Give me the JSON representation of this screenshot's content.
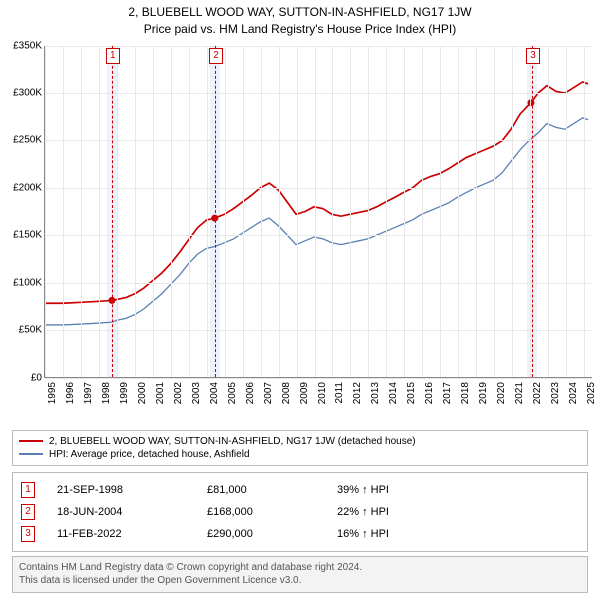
{
  "title": {
    "line1": "2, BLUEBELL WOOD WAY, SUTTON-IN-ASHFIELD, NG17 1JW",
    "line2": "Price paid vs. HM Land Registry's House Price Index (HPI)"
  },
  "chart": {
    "type": "line",
    "background_color": "#ffffff",
    "grid_color": "#e8e8e8",
    "axis_color": "#888888",
    "tick_fontsize": 10,
    "xlim_year": [
      1995,
      2025.5
    ],
    "ylim": [
      0,
      350000
    ],
    "ytick_step": 50000,
    "ytick_labels": [
      "£0",
      "£50K",
      "£100K",
      "£150K",
      "£200K",
      "£250K",
      "£300K",
      "£350K"
    ],
    "x_years": [
      1995,
      1996,
      1997,
      1998,
      1999,
      2000,
      2001,
      2002,
      2003,
      2004,
      2005,
      2006,
      2007,
      2008,
      2009,
      2010,
      2011,
      2012,
      2013,
      2014,
      2015,
      2016,
      2017,
      2018,
      2019,
      2020,
      2021,
      2022,
      2023,
      2024,
      2025
    ],
    "marker_band_color": "#eef3fb",
    "markers": [
      {
        "id": "1",
        "year": 1998.72,
        "color": "#cc0000"
      },
      {
        "id": "2",
        "year": 2004.46,
        "color": "#cc0000"
      },
      {
        "id": "3",
        "year": 2022.11,
        "color": "#cc0000"
      }
    ],
    "series": [
      {
        "name": "property",
        "label": "2, BLUEBELL WOOD WAY, SUTTON-IN-ASHFIELD, NG17 1JW (detached house)",
        "color": "#cc0000",
        "line_width": 1.7,
        "points_year_value": [
          [
            1995,
            78000
          ],
          [
            1996,
            78000
          ],
          [
            1997,
            79000
          ],
          [
            1998,
            80000
          ],
          [
            1998.72,
            81000
          ],
          [
            1999,
            82000
          ],
          [
            1999.5,
            84000
          ],
          [
            2000,
            88000
          ],
          [
            2000.5,
            94000
          ],
          [
            2001,
            102000
          ],
          [
            2001.5,
            110000
          ],
          [
            2002,
            120000
          ],
          [
            2002.5,
            132000
          ],
          [
            2003,
            145000
          ],
          [
            2003.5,
            158000
          ],
          [
            2004,
            166000
          ],
          [
            2004.46,
            168000
          ],
          [
            2005,
            172000
          ],
          [
            2005.5,
            178000
          ],
          [
            2006,
            185000
          ],
          [
            2006.5,
            192000
          ],
          [
            2007,
            200000
          ],
          [
            2007.5,
            205000
          ],
          [
            2008,
            198000
          ],
          [
            2008.5,
            185000
          ],
          [
            2009,
            172000
          ],
          [
            2009.5,
            175000
          ],
          [
            2010,
            180000
          ],
          [
            2010.5,
            178000
          ],
          [
            2011,
            172000
          ],
          [
            2011.5,
            170000
          ],
          [
            2012,
            172000
          ],
          [
            2012.5,
            174000
          ],
          [
            2013,
            176000
          ],
          [
            2013.5,
            180000
          ],
          [
            2014,
            185000
          ],
          [
            2014.5,
            190000
          ],
          [
            2015,
            195000
          ],
          [
            2015.5,
            200000
          ],
          [
            2016,
            208000
          ],
          [
            2016.5,
            212000
          ],
          [
            2017,
            215000
          ],
          [
            2017.5,
            220000
          ],
          [
            2018,
            226000
          ],
          [
            2018.5,
            232000
          ],
          [
            2019,
            236000
          ],
          [
            2019.5,
            240000
          ],
          [
            2020,
            244000
          ],
          [
            2020.5,
            250000
          ],
          [
            2021,
            262000
          ],
          [
            2021.5,
            278000
          ],
          [
            2022,
            288000
          ],
          [
            2022.11,
            290000
          ],
          [
            2022.5,
            300000
          ],
          [
            2023,
            308000
          ],
          [
            2023.5,
            302000
          ],
          [
            2024,
            300000
          ],
          [
            2024.5,
            306000
          ],
          [
            2025,
            312000
          ],
          [
            2025.3,
            310000
          ]
        ],
        "sale_dots": [
          {
            "year": 1998.72,
            "value": 81000
          },
          {
            "year": 2004.46,
            "value": 168000
          },
          {
            "year": 2022.11,
            "value": 290000
          }
        ],
        "dot_radius": 3.5
      },
      {
        "name": "hpi",
        "label": "HPI: Average price, detached house, Ashfield",
        "color": "#5b7fb5",
        "line_width": 1.3,
        "points_year_value": [
          [
            1995,
            55000
          ],
          [
            1996,
            55000
          ],
          [
            1997,
            56000
          ],
          [
            1998,
            57000
          ],
          [
            1998.72,
            58000
          ],
          [
            1999,
            60000
          ],
          [
            1999.5,
            62000
          ],
          [
            2000,
            66000
          ],
          [
            2000.5,
            72000
          ],
          [
            2001,
            80000
          ],
          [
            2001.5,
            88000
          ],
          [
            2002,
            98000
          ],
          [
            2002.5,
            108000
          ],
          [
            2003,
            120000
          ],
          [
            2003.5,
            130000
          ],
          [
            2004,
            136000
          ],
          [
            2004.46,
            138000
          ],
          [
            2005,
            142000
          ],
          [
            2005.5,
            146000
          ],
          [
            2006,
            152000
          ],
          [
            2006.5,
            158000
          ],
          [
            2007,
            164000
          ],
          [
            2007.5,
            168000
          ],
          [
            2008,
            160000
          ],
          [
            2008.5,
            150000
          ],
          [
            2009,
            140000
          ],
          [
            2009.5,
            144000
          ],
          [
            2010,
            148000
          ],
          [
            2010.5,
            146000
          ],
          [
            2011,
            142000
          ],
          [
            2011.5,
            140000
          ],
          [
            2012,
            142000
          ],
          [
            2012.5,
            144000
          ],
          [
            2013,
            146000
          ],
          [
            2013.5,
            150000
          ],
          [
            2014,
            154000
          ],
          [
            2014.5,
            158000
          ],
          [
            2015,
            162000
          ],
          [
            2015.5,
            166000
          ],
          [
            2016,
            172000
          ],
          [
            2016.5,
            176000
          ],
          [
            2017,
            180000
          ],
          [
            2017.5,
            184000
          ],
          [
            2018,
            190000
          ],
          [
            2018.5,
            195000
          ],
          [
            2019,
            200000
          ],
          [
            2019.5,
            204000
          ],
          [
            2020,
            208000
          ],
          [
            2020.5,
            216000
          ],
          [
            2021,
            228000
          ],
          [
            2021.5,
            240000
          ],
          [
            2022,
            250000
          ],
          [
            2022.5,
            258000
          ],
          [
            2023,
            268000
          ],
          [
            2023.5,
            264000
          ],
          [
            2024,
            262000
          ],
          [
            2024.5,
            268000
          ],
          [
            2025,
            274000
          ],
          [
            2025.3,
            272000
          ]
        ]
      }
    ]
  },
  "legend": {
    "border_color": "#bbbbbb"
  },
  "events": [
    {
      "id": "1",
      "date": "21-SEP-1998",
      "price": "£81,000",
      "diff": "39% ↑ HPI",
      "color": "#cc0000"
    },
    {
      "id": "2",
      "date": "18-JUN-2004",
      "price": "£168,000",
      "diff": "22% ↑ HPI",
      "color": "#cc0000"
    },
    {
      "id": "3",
      "date": "11-FEB-2022",
      "price": "£290,000",
      "diff": "16% ↑ HPI",
      "color": "#cc0000"
    }
  ],
  "attribution": {
    "line1": "Contains HM Land Registry data © Crown copyright and database right 2024.",
    "line2": "This data is licensed under the Open Government Licence v3.0.",
    "bg_color": "#f3f3f3",
    "text_color": "#555555"
  }
}
